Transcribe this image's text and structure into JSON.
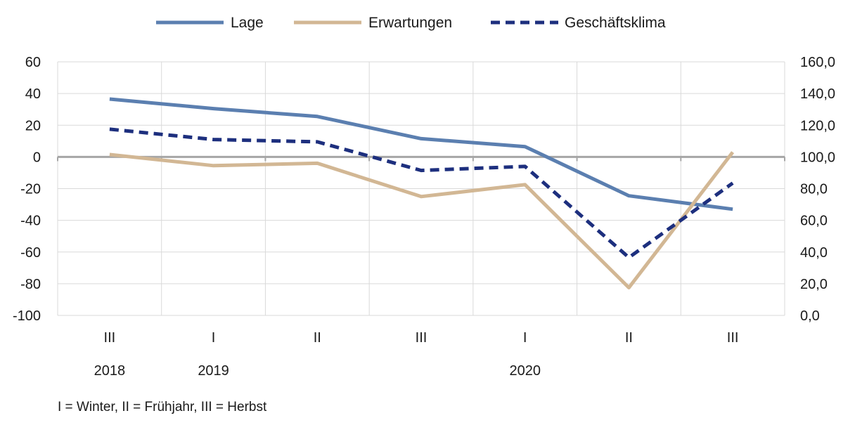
{
  "chart_data": {
    "type": "line",
    "categories": [
      "III",
      "I",
      "II",
      "III",
      "I",
      "II",
      "III"
    ],
    "year_labels": [
      {
        "index": 0,
        "label": "2018"
      },
      {
        "index": 1,
        "label": "2019"
      },
      {
        "index": 4,
        "label": "2020"
      }
    ],
    "series": [
      {
        "name": "Lage",
        "axis": "left",
        "style": "solid",
        "color": "#5b7fb0",
        "values": [
          36.5,
          30.5,
          25.5,
          11.5,
          6.5,
          -24.5,
          -33
        ]
      },
      {
        "name": "Erwartungen",
        "axis": "left",
        "style": "solid",
        "color": "#d2b794",
        "values": [
          1.5,
          -5.5,
          -4,
          -25,
          -17.5,
          -82.5,
          3
        ]
      },
      {
        "name": "Geschäftsklima",
        "axis": "right",
        "style": "dashed",
        "color": "#1d2f7e",
        "values": [
          117.5,
          111,
          109.5,
          91.5,
          94,
          36.5,
          83.5
        ]
      }
    ],
    "y_left": {
      "min": -100,
      "max": 60,
      "ticks": [
        "60",
        "40",
        "20",
        "0",
        "-20",
        "-40",
        "-60",
        "-80",
        "-100"
      ]
    },
    "y_right": {
      "min": 0,
      "max": 160,
      "ticks": [
        "160,0",
        "140,0",
        "120,0",
        "100,0",
        "80,0",
        "60,0",
        "40,0",
        "20,0",
        "0,0"
      ]
    },
    "grid": true,
    "legend_position": "top",
    "footnote": "I = Winter, II = Frühjahr, III = Herbst"
  }
}
